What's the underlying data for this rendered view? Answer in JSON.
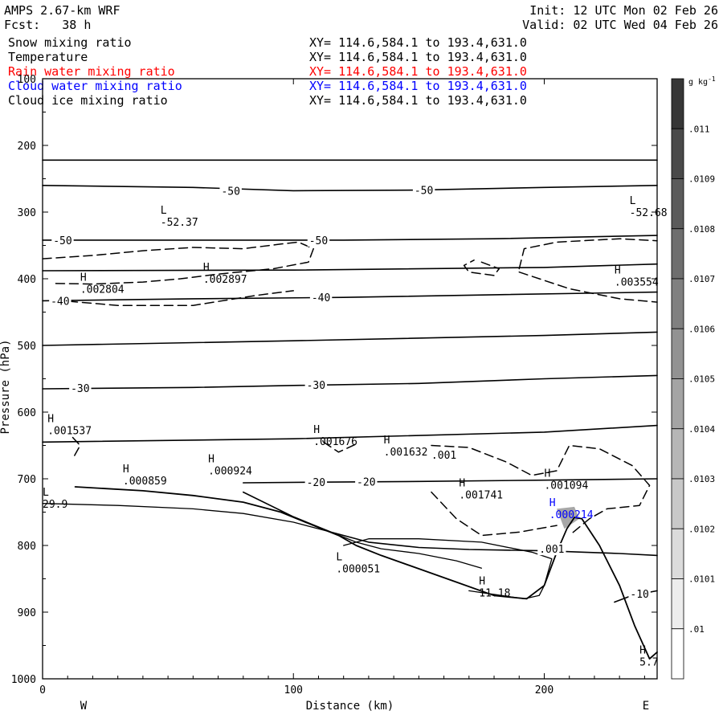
{
  "header": {
    "model": "AMPS 2.67-km WRF",
    "init": "Init: 12 UTC Mon 02 Feb 26",
    "fcst": "Fcst:   38 h",
    "valid": "Valid: 02 UTC Wed 04 Feb 26"
  },
  "fields": [
    {
      "name": "Snow mixing ratio",
      "xy": "XY= 114.6,584.1 to 193.4,631.0",
      "color": "#000000"
    },
    {
      "name": "Temperature",
      "xy": "XY= 114.6,584.1 to 193.4,631.0",
      "color": "#000000"
    },
    {
      "name": "Rain water mixing ratio",
      "xy": "XY= 114.6,584.1 to 193.4,631.0",
      "color": "#ff0000"
    },
    {
      "name": "Cloud water mixing ratio",
      "xy": "XY= 114.6,584.1 to 193.4,631.0",
      "color": "#0000ff"
    },
    {
      "name": "Cloud ice mixing ratio",
      "xy": "XY= 114.6,584.1 to 193.4,631.0",
      "color": "#000000"
    }
  ],
  "chart_data": {
    "type": "cross-section contour",
    "xlabel": "Distance (km)",
    "ylabel": "Pressure (hPa)",
    "xlim": [
      0,
      245
    ],
    "ylim": [
      1000,
      100
    ],
    "xticks": [
      0,
      100,
      200
    ],
    "yticks": [
      100,
      200,
      300,
      400,
      500,
      600,
      700,
      800,
      900,
      1000
    ],
    "west_label": "W",
    "east_label": "E",
    "colorbar": {
      "unit": "g kg",
      "unit_exp": "-1",
      "labels": [
        ".011",
        ".0109",
        ".0108",
        ".0107",
        ".0106",
        ".0105",
        ".0104",
        ".0103",
        ".0102",
        ".0101",
        ".01"
      ]
    },
    "temperature_contours": [
      {
        "points": [
          [
            0,
            222
          ],
          [
            245,
            222
          ]
        ]
      },
      {
        "points": [
          [
            0,
            260
          ],
          [
            60,
            263
          ],
          [
            100,
            268
          ],
          [
            150,
            267
          ],
          [
            200,
            263
          ],
          [
            245,
            260
          ]
        ],
        "labels": [
          {
            "x": 75,
            "y": 268,
            "text": "-50"
          },
          {
            "x": 152,
            "y": 267,
            "text": "-50"
          }
        ]
      },
      {
        "points": [
          [
            0,
            342
          ],
          [
            60,
            342
          ],
          [
            120,
            342
          ],
          [
            180,
            340
          ],
          [
            245,
            335
          ]
        ],
        "labels": [
          {
            "x": 8,
            "y": 342,
            "text": "-50"
          },
          {
            "x": 110,
            "y": 342,
            "text": "-50"
          }
        ]
      },
      {
        "points": [
          [
            0,
            388
          ],
          [
            100,
            387
          ],
          [
            200,
            383
          ],
          [
            245,
            378
          ]
        ]
      },
      {
        "points": [
          [
            0,
            433
          ],
          [
            60,
            430
          ],
          [
            120,
            428
          ],
          [
            180,
            424
          ],
          [
            245,
            420
          ]
        ],
        "labels": [
          {
            "x": 7,
            "y": 433,
            "text": "-40"
          },
          {
            "x": 111,
            "y": 428,
            "text": "-40"
          }
        ]
      },
      {
        "points": [
          [
            0,
            500
          ],
          [
            100,
            493
          ],
          [
            200,
            485
          ],
          [
            245,
            480
          ]
        ]
      },
      {
        "points": [
          [
            0,
            565
          ],
          [
            60,
            563
          ],
          [
            100,
            560
          ],
          [
            150,
            557
          ],
          [
            200,
            550
          ],
          [
            245,
            545
          ]
        ],
        "labels": [
          {
            "x": 15,
            "y": 564,
            "text": "-30"
          },
          {
            "x": 109,
            "y": 559,
            "text": "-30"
          }
        ]
      },
      {
        "points": [
          [
            0,
            645
          ],
          [
            100,
            640
          ],
          [
            200,
            630
          ],
          [
            245,
            620
          ]
        ]
      },
      {
        "points": [
          [
            80,
            706
          ],
          [
            110,
            705
          ],
          [
            150,
            704
          ],
          [
            200,
            702
          ],
          [
            245,
            700
          ]
        ],
        "labels": [
          {
            "x": 109,
            "y": 705,
            "text": "-20"
          },
          {
            "x": 129,
            "y": 704,
            "text": "-20"
          }
        ]
      },
      {
        "points": [
          [
            80,
            720
          ],
          [
            100,
            757
          ],
          [
            115,
            780
          ],
          [
            130,
            795
          ],
          [
            150,
            803
          ],
          [
            170,
            806
          ],
          [
            200,
            808
          ],
          [
            215,
            810
          ],
          [
            230,
            812
          ],
          [
            245,
            815
          ]
        ]
      },
      {
        "points": [
          [
            228,
            885
          ],
          [
            235,
            875
          ],
          [
            245,
            868
          ]
        ],
        "labels": [
          {
            "x": 238,
            "y": 872,
            "text": "-10"
          }
        ]
      }
    ],
    "terrain": [
      [
        13,
        712
      ],
      [
        40,
        718
      ],
      [
        60,
        725
      ],
      [
        80,
        735
      ],
      [
        95,
        750
      ],
      [
        108,
        770
      ],
      [
        118,
        785
      ],
      [
        125,
        800
      ],
      [
        135,
        815
      ],
      [
        150,
        835
      ],
      [
        165,
        855
      ],
      [
        180,
        875
      ],
      [
        193,
        880
      ],
      [
        200,
        860
      ],
      [
        205,
        810
      ],
      [
        209,
        775
      ],
      [
        212,
        758
      ],
      [
        215,
        760
      ],
      [
        222,
        800
      ],
      [
        230,
        860
      ],
      [
        236,
        920
      ],
      [
        242,
        970
      ],
      [
        245,
        960
      ]
    ],
    "snow_contours": [
      {
        "points": [
          [
            0,
            370
          ],
          [
            20,
            365
          ],
          [
            40,
            358
          ],
          [
            60,
            353
          ],
          [
            80,
            355
          ],
          [
            95,
            348
          ],
          [
            102,
            345
          ],
          [
            108,
            355
          ],
          [
            106,
            375
          ],
          [
            92,
            385
          ],
          [
            70,
            393
          ],
          [
            55,
            400
          ],
          [
            40,
            405
          ],
          [
            20,
            408
          ],
          [
            5,
            407
          ]
        ]
      },
      {
        "points": [
          [
            5,
            432
          ],
          [
            30,
            440
          ],
          [
            60,
            440
          ],
          [
            85,
            425
          ],
          [
            100,
            418
          ]
        ]
      },
      {
        "points": [
          [
            12,
            638
          ],
          [
            15,
            650
          ],
          [
            12,
            670
          ]
        ]
      },
      {
        "points": [
          [
            112,
            645
          ],
          [
            118,
            660
          ],
          [
            125,
            648
          ]
        ]
      },
      {
        "points": [
          [
            155,
            650
          ],
          [
            170,
            653
          ],
          [
            185,
            675
          ],
          [
            195,
            695
          ],
          [
            205,
            688
          ],
          [
            210,
            650
          ],
          [
            222,
            655
          ],
          [
            235,
            680
          ],
          [
            242,
            710
          ],
          [
            238,
            740
          ],
          [
            225,
            745
          ],
          [
            218,
            760
          ],
          [
            210,
            785
          ]
        ]
      },
      {
        "points": [
          [
            155,
            720
          ],
          [
            165,
            760
          ],
          [
            175,
            785
          ],
          [
            190,
            780
          ],
          [
            205,
            770
          ]
        ]
      },
      {
        "points": [
          [
            175,
            375
          ],
          [
            182,
            385
          ],
          [
            180,
            395
          ],
          [
            170,
            390
          ],
          [
            168,
            380
          ],
          [
            172,
            372
          ]
        ]
      },
      {
        "points": [
          [
            190,
            385
          ],
          [
            192,
            355
          ],
          [
            205,
            345
          ],
          [
            230,
            340
          ],
          [
            245,
            343
          ]
        ]
      },
      {
        "points": [
          [
            190,
            390
          ],
          [
            210,
            415
          ],
          [
            230,
            430
          ],
          [
            245,
            435
          ]
        ]
      }
    ],
    "ice_contours": [
      {
        "points": [
          [
            0,
            737
          ],
          [
            30,
            740
          ],
          [
            60,
            745
          ],
          [
            80,
            752
          ],
          [
            100,
            765
          ],
          [
            115,
            780
          ],
          [
            125,
            795
          ],
          [
            135,
            805
          ],
          [
            150,
            812
          ],
          [
            165,
            823
          ],
          [
            175,
            834
          ]
        ]
      },
      {
        "points": [
          [
            120,
            800
          ],
          [
            130,
            790
          ],
          [
            150,
            790
          ],
          [
            175,
            795
          ],
          [
            195,
            810
          ],
          [
            203,
            820
          ],
          [
            200,
            860
          ],
          [
            198,
            875
          ],
          [
            192,
            880
          ],
          [
            183,
            875
          ],
          [
            170,
            868
          ]
        ]
      }
    ],
    "extrema": [
      {
        "x": 47,
        "y": 307,
        "letter": "L",
        "value": "-52.37",
        "color": "#000000"
      },
      {
        "x": 234,
        "y": 293,
        "letter": "L",
        "value": "-52.68",
        "color": "#000000"
      },
      {
        "x": 15,
        "y": 408,
        "letter": "H",
        "value": ".002804",
        "color": "#000000"
      },
      {
        "x": 64,
        "y": 393,
        "letter": "H",
        "value": ".002897",
        "color": "#000000"
      },
      {
        "x": 228,
        "y": 397,
        "letter": "H",
        "value": ".003554",
        "color": "#000000"
      },
      {
        "x": 2,
        "y": 620,
        "letter": "H",
        "value": ".001537",
        "color": "#000000"
      },
      {
        "x": 108,
        "y": 636,
        "letter": "H",
        "value": ".001676",
        "color": "#000000"
      },
      {
        "x": 136,
        "y": 652,
        "letter": "H",
        "value": ".001632",
        "color": "#000000"
      },
      {
        "x": 166,
        "y": 716,
        "letter": "H",
        "value": ".001741",
        "color": "#000000"
      },
      {
        "x": 200,
        "y": 702,
        "letter": "H",
        "value": ".001094",
        "color": "#000000"
      },
      {
        "x": 32,
        "y": 695,
        "letter": "H",
        "value": ".000859",
        "color": "#000000"
      },
      {
        "x": 66,
        "y": 680,
        "letter": "H",
        "value": ".000924",
        "color": "#000000"
      },
      {
        "x": 202,
        "y": 746,
        "letter": "H",
        "value": ".000214",
        "color": "#0000ff"
      },
      {
        "x": 117,
        "y": 827,
        "letter": "L",
        "value": ".000051",
        "color": "#000000"
      },
      {
        "x": 174,
        "y": 863,
        "letter": "H",
        "value": "11.18",
        "color": "#000000"
      },
      {
        "x": 238,
        "y": 967,
        "letter": "H",
        "value": "5.7",
        "color": "#000000"
      },
      {
        "x": 0,
        "y": 730,
        "letter": "L",
        "value": "29.9",
        "color": "#000000"
      }
    ],
    "contour_labels": [
      {
        "x": 160,
        "y": 664,
        "text": ".001"
      },
      {
        "x": 203,
        "y": 805,
        "text": ".001"
      }
    ]
  }
}
